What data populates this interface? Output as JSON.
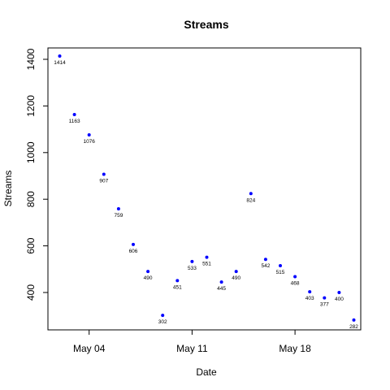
{
  "chart_data": {
    "type": "scatter",
    "title": "Streams",
    "xlabel": "Date",
    "ylabel": "Streams",
    "x_ticks": [
      {
        "day": 4,
        "label": "May 04"
      },
      {
        "day": 11,
        "label": "May 11"
      },
      {
        "day": 18,
        "label": "May 18"
      }
    ],
    "y_ticks": [
      400,
      600,
      800,
      1000,
      1200,
      1400
    ],
    "ylim": [
      240,
      1450
    ],
    "points": [
      {
        "date": "May 02",
        "value": 1414
      },
      {
        "date": "May 03",
        "value": 1163
      },
      {
        "date": "May 04",
        "value": 1076
      },
      {
        "date": "May 05",
        "value": 907
      },
      {
        "date": "May 06",
        "value": 759
      },
      {
        "date": "May 07",
        "value": 606
      },
      {
        "date": "May 08",
        "value": 490
      },
      {
        "date": "May 09",
        "value": 302
      },
      {
        "date": "May 10",
        "value": 451
      },
      {
        "date": "May 11",
        "value": 533
      },
      {
        "date": "May 12",
        "value": 551
      },
      {
        "date": "May 13",
        "value": 445
      },
      {
        "date": "May 14",
        "value": 490
      },
      {
        "date": "May 15",
        "value": 824
      },
      {
        "date": "May 16",
        "value": 542
      },
      {
        "date": "May 17",
        "value": 515
      },
      {
        "date": "May 18",
        "value": 468
      },
      {
        "date": "May 19",
        "value": 403
      },
      {
        "date": "May 20",
        "value": 377
      },
      {
        "date": "May 21",
        "value": 400
      },
      {
        "date": "May 22",
        "value": 282
      }
    ],
    "point_color": "#0000ff",
    "grid": false,
    "legend": "none"
  }
}
